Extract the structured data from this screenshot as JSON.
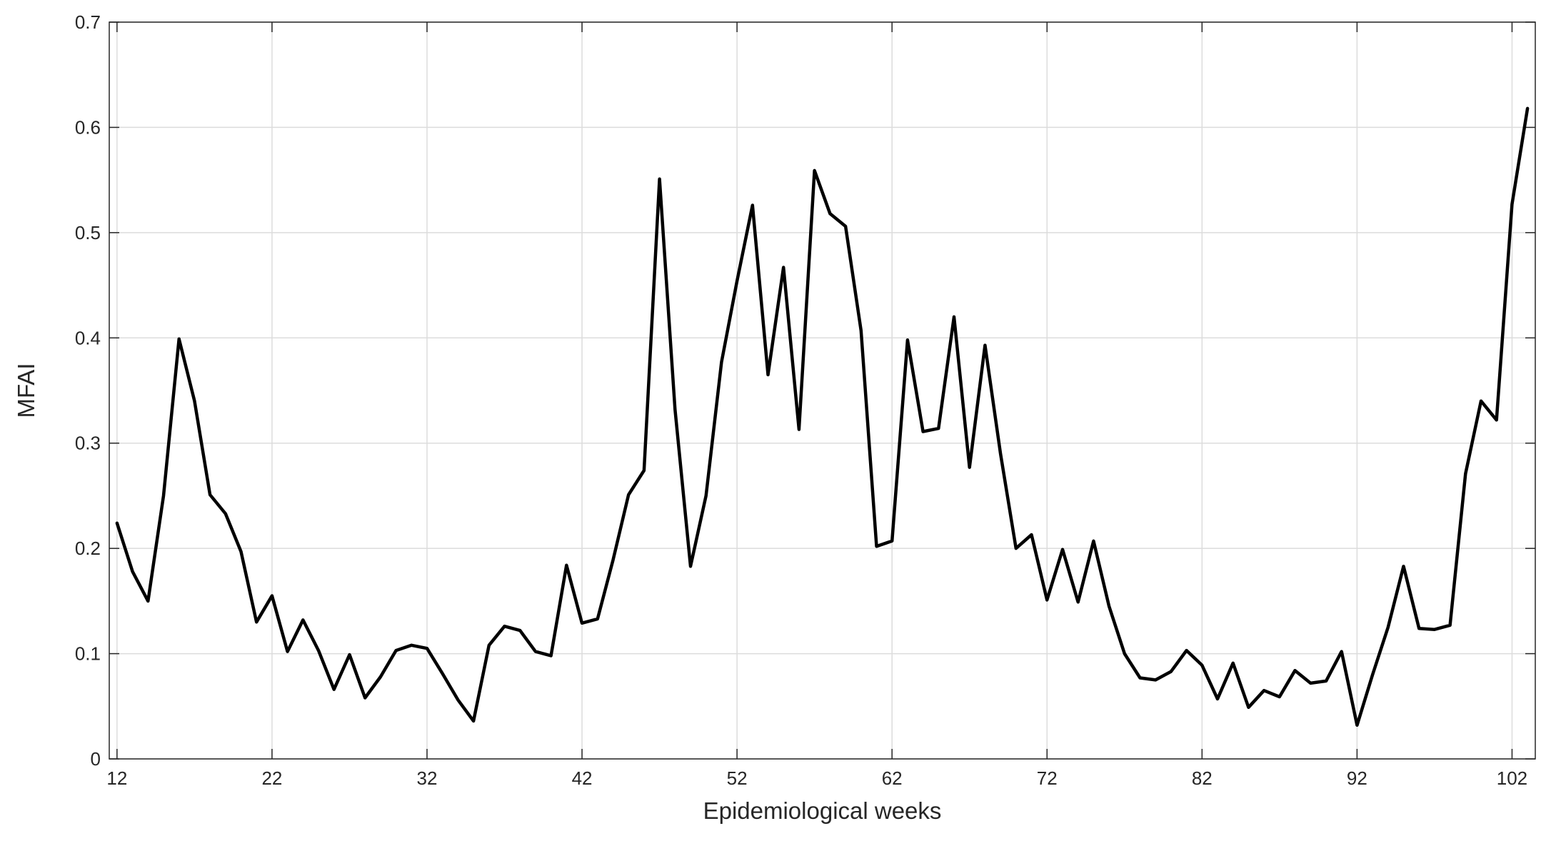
{
  "chart_data": {
    "type": "line",
    "title": "",
    "xlabel": "Epidemiological weeks",
    "ylabel": "MFAI",
    "xlim": [
      11.5,
      103.5
    ],
    "ylim": [
      0,
      0.7
    ],
    "xticks": [
      12,
      22,
      32,
      42,
      52,
      62,
      72,
      82,
      92,
      102
    ],
    "yticks": [
      0,
      0.1,
      0.2,
      0.3,
      0.4,
      0.5,
      0.6,
      0.7
    ],
    "xtick_labels": [
      "12",
      "22",
      "32",
      "42",
      "52",
      "62",
      "72",
      "82",
      "92",
      "102"
    ],
    "ytick_labels": [
      "0",
      "0.1",
      "0.2",
      "0.3",
      "0.4",
      "0.5",
      "0.6",
      "0.7"
    ],
    "grid": true,
    "series_color": "#000000",
    "x": [
      12,
      13,
      14,
      15,
      16,
      17,
      18,
      19,
      20,
      21,
      22,
      23,
      24,
      25,
      26,
      27,
      28,
      29,
      30,
      31,
      32,
      33,
      34,
      35,
      36,
      37,
      38,
      39,
      40,
      41,
      42,
      43,
      44,
      45,
      46,
      47,
      48,
      49,
      50,
      51,
      52,
      53,
      54,
      55,
      56,
      57,
      58,
      59,
      60,
      61,
      62,
      63,
      64,
      65,
      66,
      67,
      68,
      69,
      70,
      71,
      72,
      73,
      74,
      75,
      76,
      77,
      78,
      79,
      80,
      81,
      82,
      83,
      84,
      85,
      86,
      87,
      88,
      89,
      90,
      91,
      92,
      93,
      94,
      95,
      96,
      97,
      98,
      99,
      100,
      101,
      102,
      103
    ],
    "y": [
      0.224,
      0.178,
      0.15,
      0.25,
      0.399,
      0.34,
      0.251,
      0.233,
      0.197,
      0.13,
      0.155,
      0.102,
      0.132,
      0.103,
      0.066,
      0.099,
      0.058,
      0.078,
      0.103,
      0.108,
      0.105,
      0.081,
      0.056,
      0.036,
      0.108,
      0.126,
      0.122,
      0.102,
      0.098,
      0.184,
      0.129,
      0.133,
      0.189,
      0.251,
      0.274,
      0.551,
      0.332,
      0.183,
      0.25,
      0.377,
      0.454,
      0.526,
      0.365,
      0.467,
      0.313,
      0.559,
      0.518,
      0.506,
      0.407,
      0.202,
      0.207,
      0.398,
      0.311,
      0.314,
      0.42,
      0.277,
      0.393,
      0.29,
      0.2,
      0.213,
      0.151,
      0.199,
      0.149,
      0.207,
      0.145,
      0.1,
      0.077,
      0.075,
      0.083,
      0.103,
      0.089,
      0.057,
      0.091,
      0.049,
      0.065,
      0.059,
      0.084,
      0.072,
      0.074,
      0.102,
      0.032,
      0.08,
      0.125,
      0.183,
      0.124,
      0.123,
      0.127,
      0.271,
      0.34,
      0.322,
      0.527,
      0.618
    ]
  }
}
